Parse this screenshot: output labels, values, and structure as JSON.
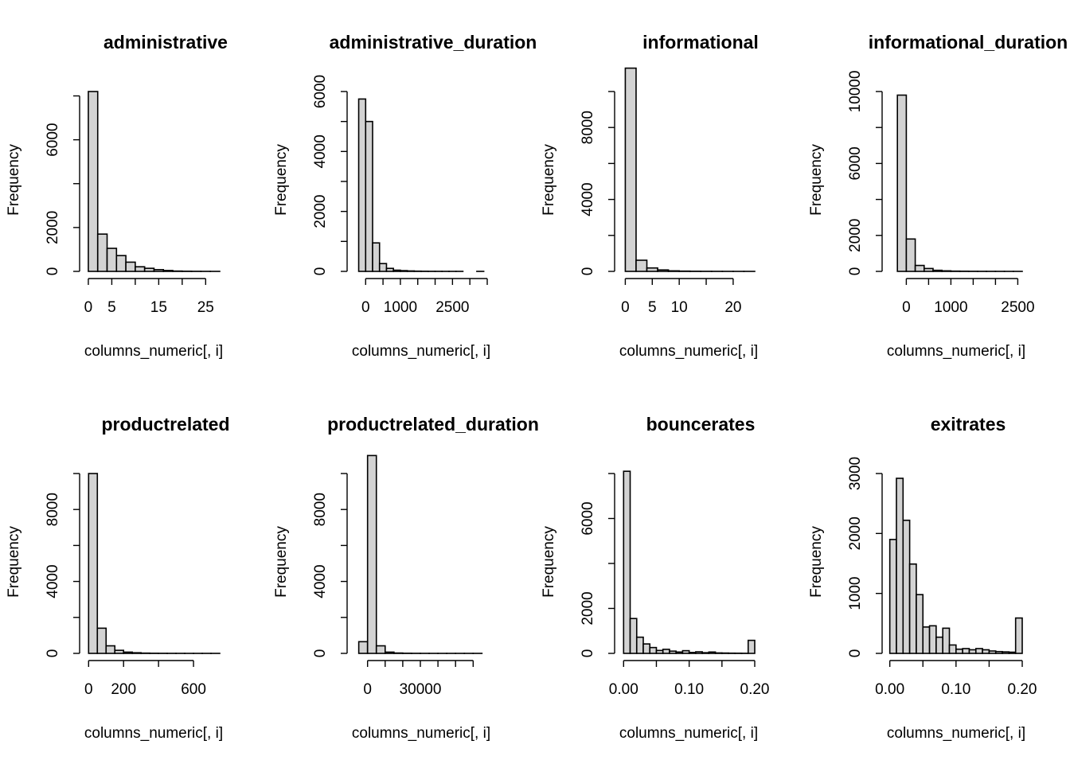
{
  "chart_data": [
    {
      "type": "histogram",
      "title": "administrative",
      "xlabel": "columns_numeric[, i]",
      "ylabel": "Frequency",
      "bin_width": 2,
      "bins": [
        [
          0,
          8200
        ],
        [
          2,
          1700
        ],
        [
          4,
          1050
        ],
        [
          6,
          720
        ],
        [
          8,
          420
        ],
        [
          10,
          210
        ],
        [
          12,
          140
        ],
        [
          14,
          80
        ],
        [
          16,
          40
        ],
        [
          18,
          15
        ],
        [
          20,
          8
        ],
        [
          22,
          4
        ],
        [
          24,
          2
        ],
        [
          26,
          1
        ]
      ],
      "xlim": [
        -0.5,
        28
      ],
      "x_ticks": [
        0,
        5,
        10,
        15,
        20,
        25
      ],
      "x_tick_labels": [
        "0",
        "5",
        "",
        "15",
        "",
        "25"
      ],
      "y_axis_max": 8200,
      "y_ticks": [
        0,
        2000,
        4000,
        6000,
        8000
      ],
      "y_tick_labels": [
        "0",
        "2000",
        "",
        "6000",
        ""
      ],
      "fill": "#d3d3d3"
    },
    {
      "type": "histogram",
      "title": "administrative_duration",
      "xlabel": "columns_numeric[, i]",
      "ylabel": "Frequency",
      "bin_width": 200,
      "bins": [
        [
          -200,
          5750
        ],
        [
          0,
          5000
        ],
        [
          200,
          950
        ],
        [
          400,
          260
        ],
        [
          600,
          100
        ],
        [
          800,
          40
        ],
        [
          1000,
          25
        ],
        [
          1200,
          15
        ],
        [
          1400,
          8
        ],
        [
          1600,
          5
        ],
        [
          1800,
          3
        ],
        [
          2000,
          2
        ],
        [
          2200,
          1
        ],
        [
          2400,
          1
        ],
        [
          2600,
          1
        ],
        [
          3200,
          1
        ]
      ],
      "xlim": [
        -350,
        3500
      ],
      "x_ticks": [
        0,
        500,
        1000,
        1500,
        2000,
        2500,
        3000,
        3500
      ],
      "x_tick_labels": [
        "0",
        "",
        "1000",
        "",
        "",
        "2500",
        "",
        ""
      ],
      "y_axis_max": 6000,
      "y_ticks": [
        0,
        1000,
        2000,
        3000,
        4000,
        5000,
        6000
      ],
      "y_tick_labels": [
        "0",
        "",
        "2000",
        "",
        "4000",
        "",
        "6000"
      ],
      "fill": "#d3d3d3"
    },
    {
      "type": "histogram",
      "title": "informational",
      "xlabel": "columns_numeric[, i]",
      "ylabel": "Frequency",
      "bin_width": 2,
      "bins": [
        [
          0,
          11300
        ],
        [
          2,
          620
        ],
        [
          4,
          190
        ],
        [
          6,
          80
        ],
        [
          8,
          30
        ],
        [
          10,
          15
        ],
        [
          12,
          8
        ],
        [
          14,
          5
        ],
        [
          16,
          3
        ],
        [
          18,
          2
        ],
        [
          20,
          1
        ],
        [
          22,
          1
        ]
      ],
      "xlim": [
        -0.8,
        24
      ],
      "x_ticks": [
        0,
        5,
        10,
        15,
        20
      ],
      "x_tick_labels": [
        "0",
        "5",
        "10",
        "",
        "20"
      ],
      "y_axis_max": 10000,
      "y_ticks": [
        0,
        2000,
        4000,
        6000,
        8000,
        10000
      ],
      "y_tick_labels": [
        "0",
        "",
        "4000",
        "",
        "8000",
        ""
      ],
      "fill": "#d3d3d3"
    },
    {
      "type": "histogram",
      "title": "informational_duration",
      "xlabel": "columns_numeric[, i]",
      "ylabel": "Frequency",
      "bin_width": 200,
      "bins": [
        [
          -200,
          9800
        ],
        [
          0,
          1800
        ],
        [
          200,
          330
        ],
        [
          400,
          160
        ],
        [
          600,
          60
        ],
        [
          800,
          30
        ],
        [
          1000,
          15
        ],
        [
          1200,
          10
        ],
        [
          1400,
          6
        ],
        [
          1600,
          4
        ],
        [
          1800,
          3
        ],
        [
          2000,
          2
        ],
        [
          2200,
          1
        ],
        [
          2400,
          1
        ]
      ],
      "xlim": [
        -400,
        2600
      ],
      "x_ticks": [
        0,
        500,
        1000,
        1500,
        2000,
        2500
      ],
      "x_tick_labels": [
        "0",
        "",
        "1000",
        "",
        "",
        "2500"
      ],
      "y_axis_max": 10000,
      "y_ticks": [
        0,
        2000,
        4000,
        6000,
        8000,
        10000
      ],
      "y_tick_labels": [
        "0",
        "2000",
        "",
        "6000",
        "",
        "10000"
      ],
      "fill": "#d3d3d3"
    },
    {
      "type": "histogram",
      "title": "productrelated",
      "xlabel": "columns_numeric[, i]",
      "ylabel": "Frequency",
      "bin_width": 50,
      "bins": [
        [
          0,
          10000
        ],
        [
          50,
          1400
        ],
        [
          100,
          420
        ],
        [
          150,
          170
        ],
        [
          200,
          70
        ],
        [
          250,
          35
        ],
        [
          300,
          15
        ],
        [
          350,
          8
        ],
        [
          400,
          5
        ],
        [
          450,
          3
        ],
        [
          500,
          2
        ],
        [
          550,
          1
        ],
        [
          600,
          1
        ],
        [
          650,
          1
        ],
        [
          700,
          1
        ]
      ],
      "xlim": [
        -15,
        750
      ],
      "x_ticks": [
        0,
        200,
        400,
        600
      ],
      "x_tick_labels": [
        "0",
        "200",
        "",
        "600"
      ],
      "y_axis_max": 10000,
      "y_ticks": [
        0,
        2000,
        4000,
        6000,
        8000,
        10000
      ],
      "y_tick_labels": [
        "0",
        "",
        "4000",
        "",
        "8000",
        ""
      ],
      "fill": "#d3d3d3"
    },
    {
      "type": "histogram",
      "title": "productrelated_duration",
      "xlabel": "columns_numeric[, i]",
      "ylabel": "Frequency",
      "bin_width": 5000,
      "bins": [
        [
          -5000,
          650
        ],
        [
          0,
          11000
        ],
        [
          5000,
          420
        ],
        [
          10000,
          70
        ],
        [
          15000,
          20
        ],
        [
          20000,
          8
        ],
        [
          25000,
          4
        ],
        [
          30000,
          2
        ],
        [
          35000,
          1
        ],
        [
          40000,
          1
        ],
        [
          45000,
          1
        ],
        [
          50000,
          1
        ],
        [
          55000,
          1
        ],
        [
          60000,
          1
        ]
      ],
      "xlim": [
        -8000,
        68000
      ],
      "x_ticks": [
        0,
        10000,
        20000,
        30000,
        40000,
        50000,
        60000
      ],
      "x_tick_labels": [
        "0",
        "",
        "",
        "30000",
        "",
        "",
        ""
      ],
      "y_axis_max": 10000,
      "y_ticks": [
        0,
        2000,
        4000,
        6000,
        8000,
        10000
      ],
      "y_tick_labels": [
        "0",
        "",
        "4000",
        "",
        "8000",
        ""
      ],
      "fill": "#d3d3d3"
    },
    {
      "type": "histogram",
      "title": "bouncerates",
      "xlabel": "columns_numeric[, i]",
      "ylabel": "Frequency",
      "bin_width": 0.01,
      "bins": [
        [
          0,
          8100
        ],
        [
          0.01,
          1550
        ],
        [
          0.02,
          720
        ],
        [
          0.03,
          420
        ],
        [
          0.04,
          260
        ],
        [
          0.05,
          130
        ],
        [
          0.06,
          180
        ],
        [
          0.07,
          100
        ],
        [
          0.08,
          60
        ],
        [
          0.09,
          120
        ],
        [
          0.1,
          40
        ],
        [
          0.11,
          70
        ],
        [
          0.12,
          30
        ],
        [
          0.13,
          60
        ],
        [
          0.14,
          20
        ],
        [
          0.15,
          15
        ],
        [
          0.16,
          10
        ],
        [
          0.17,
          8
        ],
        [
          0.18,
          5
        ],
        [
          0.19,
          580
        ]
      ],
      "xlim": [
        -0.004,
        0.2
      ],
      "x_ticks": [
        0,
        0.05,
        0.1,
        0.15,
        0.2
      ],
      "x_tick_labels": [
        "0.00",
        "",
        "0.10",
        "",
        "0.20"
      ],
      "y_axis_max": 8000,
      "y_ticks": [
        0,
        2000,
        4000,
        6000,
        8000
      ],
      "y_tick_labels": [
        "0",
        "2000",
        "",
        "6000",
        ""
      ],
      "fill": "#d3d3d3"
    },
    {
      "type": "histogram",
      "title": "exitrates",
      "xlabel": "columns_numeric[, i]",
      "ylabel": "Frequency",
      "bin_width": 0.01,
      "bins": [
        [
          0,
          1900
        ],
        [
          0.01,
          2920
        ],
        [
          0.02,
          2220
        ],
        [
          0.03,
          1490
        ],
        [
          0.04,
          980
        ],
        [
          0.05,
          440
        ],
        [
          0.06,
          460
        ],
        [
          0.07,
          270
        ],
        [
          0.08,
          420
        ],
        [
          0.09,
          140
        ],
        [
          0.1,
          70
        ],
        [
          0.11,
          80
        ],
        [
          0.12,
          60
        ],
        [
          0.13,
          80
        ],
        [
          0.14,
          60
        ],
        [
          0.15,
          40
        ],
        [
          0.16,
          30
        ],
        [
          0.17,
          25
        ],
        [
          0.18,
          20
        ],
        [
          0.19,
          590
        ]
      ],
      "xlim": [
        -0.002,
        0.2
      ],
      "x_ticks": [
        0,
        0.05,
        0.1,
        0.15,
        0.2
      ],
      "x_tick_labels": [
        "0.00",
        "",
        "0.10",
        "",
        "0.20"
      ],
      "y_axis_max": 3000,
      "y_ticks": [
        0,
        1000,
        2000,
        3000
      ],
      "y_tick_labels": [
        "0",
        "1000",
        "2000",
        "3000"
      ],
      "fill": "#d3d3d3"
    }
  ]
}
